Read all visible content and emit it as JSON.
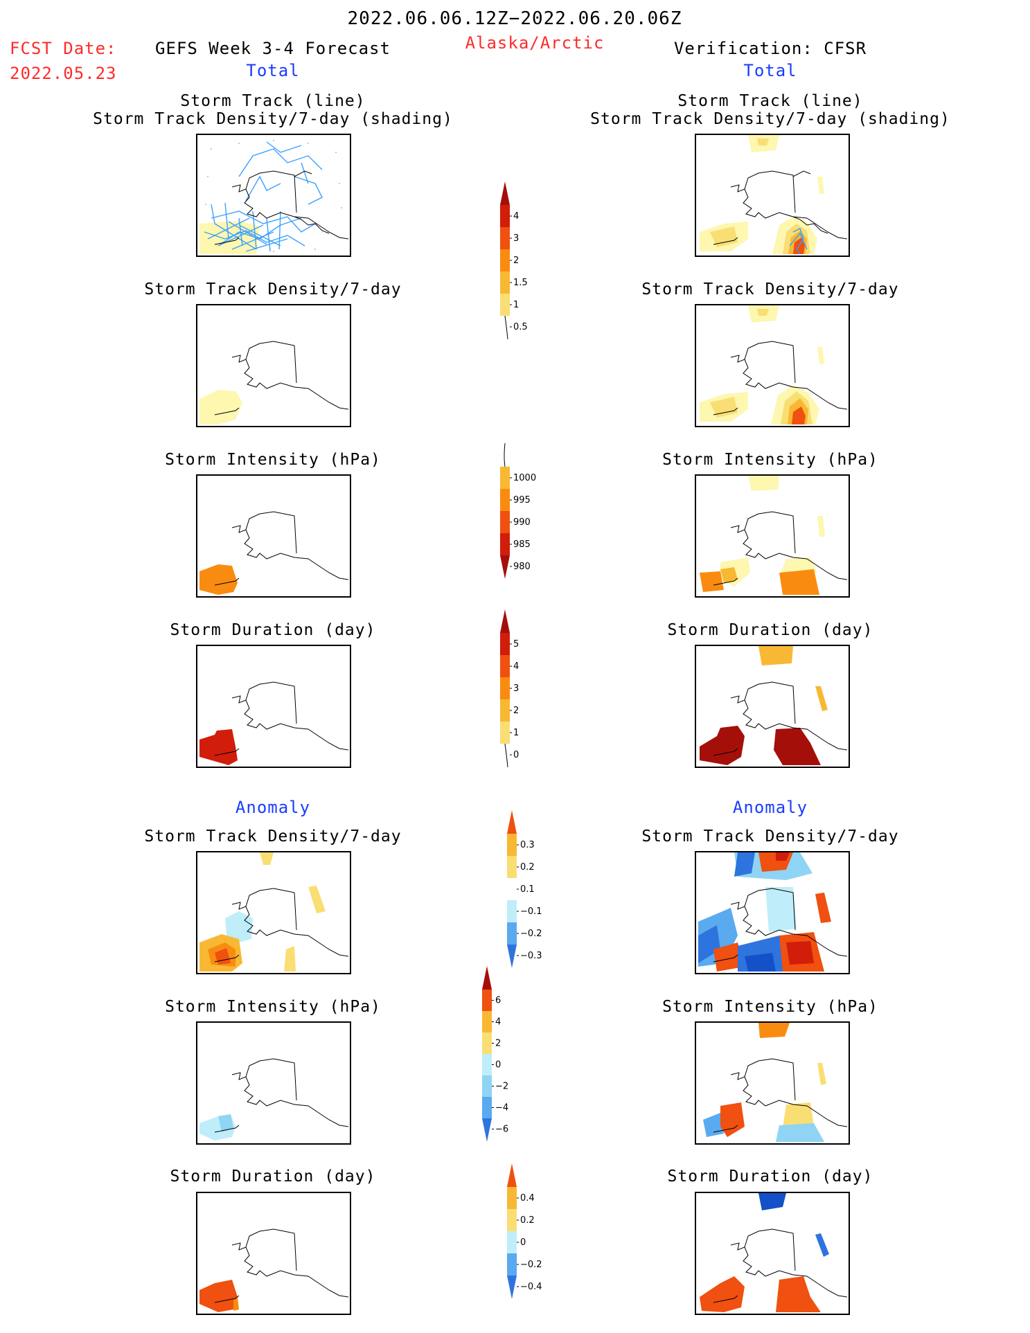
{
  "header": {
    "period": "2022.06.06.12Z−2022.06.20.06Z",
    "region": "Alaska/Arctic",
    "fcst_label": "FCST Date:",
    "fcst_date": "2022.05.23",
    "model": "GEFS Week 3-4 Forecast",
    "verification": "Verification: CFSR",
    "left_total": "Total",
    "right_total": "Total",
    "left_anomaly": "Anomaly",
    "right_anomaly": "Anomaly"
  },
  "titles": {
    "track_line": "Storm Track (line)",
    "track_shading": "Storm Track Density/7-day (shading)",
    "density": "Storm Track Density/7-day",
    "intensity": "Storm Intensity (hPa)",
    "duration": "Storm Duration (day)"
  },
  "colors": {
    "yellow1": "#fdf7b0",
    "yellow2": "#f9de74",
    "orange1": "#f9b833",
    "orange2": "#f98c10",
    "red1": "#f05010",
    "red2": "#d21d0a",
    "darkred": "#a50f0a",
    "track_line": "#3aa0ff",
    "blue1": "#bfeefa",
    "blue2": "#8fd4f4",
    "blue3": "#5aaaf0",
    "blue4": "#2e74df",
    "blue5": "#1450c8"
  },
  "chart_data": [
    {
      "type": "heatmap",
      "name": "Storm Track Density total colorbar",
      "levels": [
        0.5,
        1,
        1.5,
        2,
        3,
        4
      ],
      "tick_labels": [
        "0.5",
        "1",
        "1.5",
        "2",
        "3",
        "4"
      ]
    },
    {
      "type": "heatmap",
      "name": "Storm Intensity total colorbar (hPa)",
      "levels": [
        1000,
        995,
        990,
        985,
        980
      ],
      "tick_labels": [
        "1000",
        "995",
        "990",
        "985",
        "980"
      ]
    },
    {
      "type": "heatmap",
      "name": "Storm Duration total colorbar (day)",
      "levels": [
        0,
        1,
        2,
        3,
        4,
        5
      ],
      "tick_labels": [
        "0",
        "1",
        "2",
        "3",
        "4",
        "5"
      ]
    },
    {
      "type": "heatmap",
      "name": "Storm Track Density anomaly colorbar",
      "levels": [
        -0.3,
        -0.2,
        -0.1,
        0.1,
        0.2,
        0.3
      ],
      "tick_labels": [
        "−0.3",
        "−0.2",
        "−0.1",
        "0.1",
        "0.2",
        "0.3"
      ]
    },
    {
      "type": "heatmap",
      "name": "Storm Intensity anomaly colorbar (hPa)",
      "levels": [
        -6,
        -4,
        -2,
        0,
        2,
        4,
        6
      ],
      "tick_labels": [
        "−6",
        "−4",
        "−2",
        "0",
        "2",
        "4",
        "6"
      ]
    },
    {
      "type": "heatmap",
      "name": "Storm Duration anomaly colorbar (day)",
      "levels": [
        -0.4,
        -0.2,
        0,
        0.2,
        0.4
      ],
      "tick_labels": [
        "−0.4",
        "−0.2",
        "0",
        "0.2",
        "0.4"
      ]
    }
  ]
}
